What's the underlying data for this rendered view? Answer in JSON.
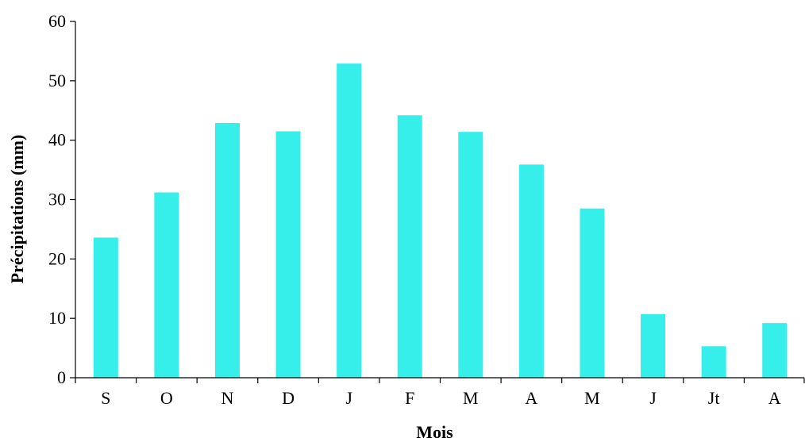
{
  "chart_data": {
    "type": "bar",
    "categories": [
      "S",
      "O",
      "N",
      "D",
      "J",
      "F",
      "M",
      "A",
      "M",
      "J",
      "Jt",
      "A"
    ],
    "values": [
      23.6,
      31.2,
      42.9,
      41.5,
      52.9,
      44.2,
      41.4,
      35.9,
      28.5,
      10.7,
      5.3,
      9.2
    ],
    "xlabel": "Mois",
    "ylabel": "Précipitations (mm)",
    "ylim": [
      0,
      60
    ],
    "yticks": [
      0,
      10,
      20,
      30,
      40,
      50,
      60
    ],
    "grid": false,
    "legend": "none",
    "bar_color": "#37EFEA"
  }
}
